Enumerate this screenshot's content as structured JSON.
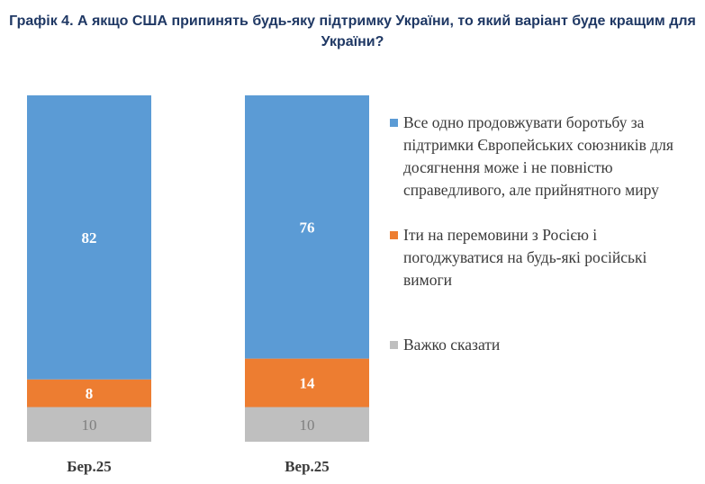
{
  "chart_data": {
    "type": "bar",
    "stacked": true,
    "title": "Графік 4. А якщо США припинять будь-яку підтримку України, то який варіант буде кращим для України?",
    "categories": [
      "Бер.25",
      "Вер.25"
    ],
    "series": [
      {
        "name": "Все одно продовжувати боротьбу за підтримки Європейських союзників для досягнення може і не повністю справедливого, але прийнятного миру",
        "values": [
          82,
          76
        ],
        "color": "#5b9bd5"
      },
      {
        "name": "Іти на перемовини з Росією і погоджуватися на будь-які російські вимоги",
        "values": [
          8,
          14
        ],
        "color": "#ed7d31"
      },
      {
        "name": "Важко сказати",
        "values": [
          10,
          10
        ],
        "color": "#bfbfbf"
      }
    ],
    "ylim": [
      0,
      100
    ],
    "legend_position": "right",
    "grid": false
  }
}
